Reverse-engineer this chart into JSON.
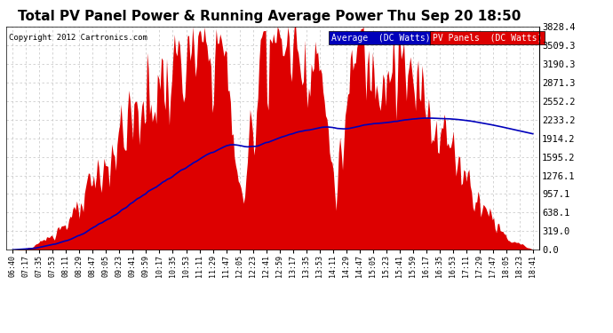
{
  "title": "Total PV Panel Power & Running Average Power Thu Sep 20 18:50",
  "copyright": "Copyright 2012 Cartronics.com",
  "ylabel_right_values": [
    0.0,
    319.0,
    638.1,
    957.1,
    1276.1,
    1595.2,
    1914.2,
    2233.2,
    2552.2,
    2871.3,
    3190.3,
    3509.3,
    3828.4
  ],
  "ymax": 3828.4,
  "ymin": 0.0,
  "legend_average_color": "#0000bb",
  "legend_average_bg": "#0000bb",
  "legend_average_label": "Average  (DC Watts)",
  "legend_pv_color": "#dd0000",
  "legend_pv_bg": "#dd0000",
  "legend_pv_label": "PV Panels  (DC Watts)",
  "background_color": "#ffffff",
  "plot_bg_color": "#ffffff",
  "grid_color": "#cccccc",
  "title_fontsize": 11,
  "x_tick_labels": [
    "06:40",
    "07:17",
    "07:35",
    "07:53",
    "08:11",
    "08:29",
    "08:47",
    "09:05",
    "09:23",
    "09:41",
    "09:59",
    "10:17",
    "10:35",
    "10:53",
    "11:11",
    "11:29",
    "11:47",
    "12:05",
    "12:23",
    "12:41",
    "12:59",
    "13:17",
    "13:35",
    "13:53",
    "14:11",
    "14:29",
    "14:47",
    "15:05",
    "15:23",
    "15:41",
    "15:59",
    "16:17",
    "16:35",
    "16:53",
    "17:11",
    "17:29",
    "17:47",
    "18:05",
    "18:23",
    "18:41"
  ]
}
